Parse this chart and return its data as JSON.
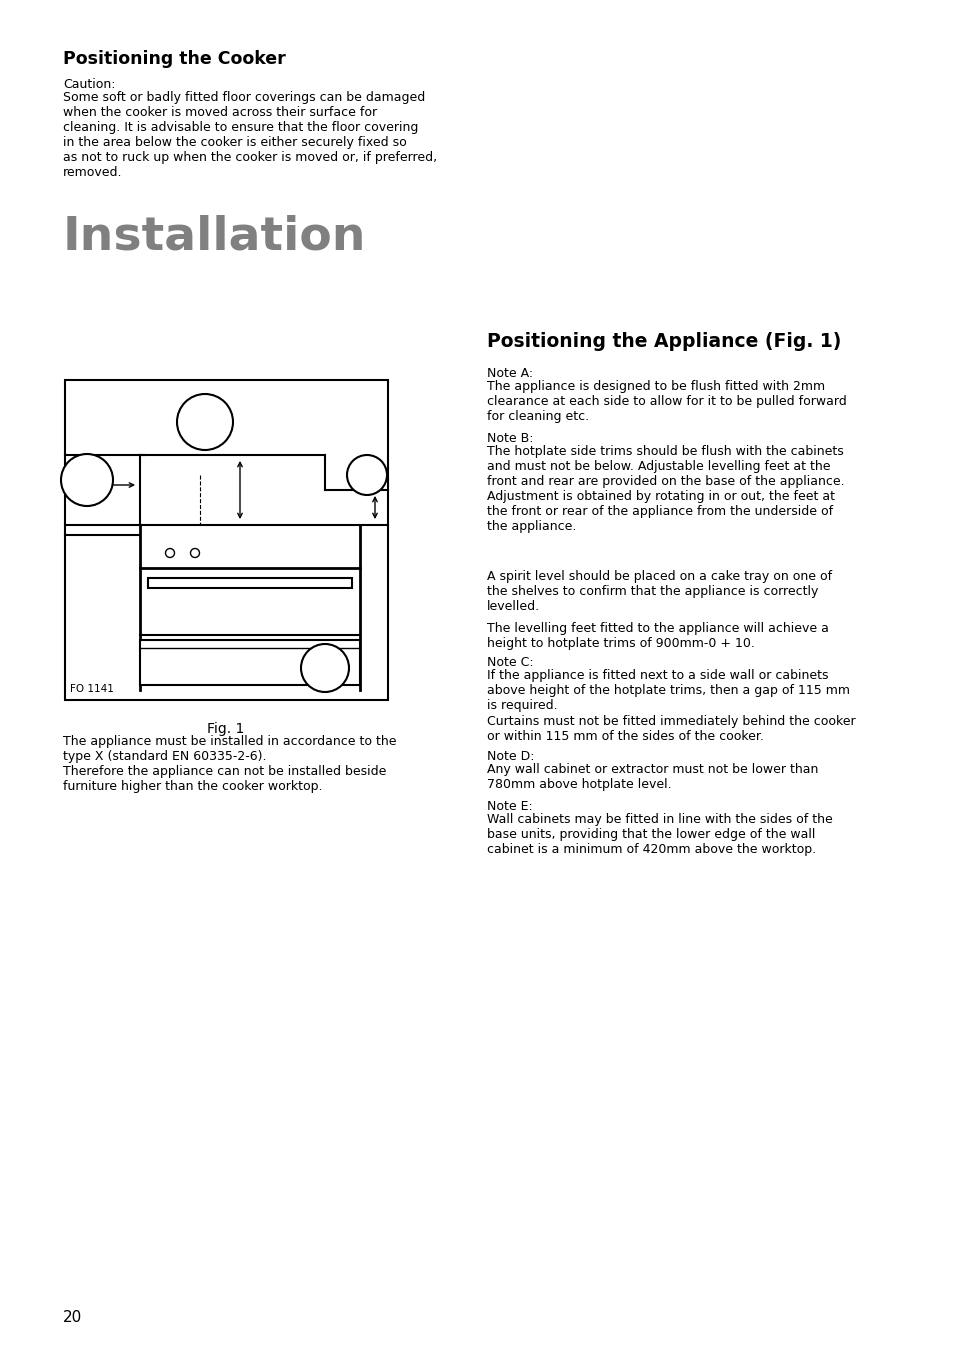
{
  "bg_color": "#ffffff",
  "page_number": "20",
  "section1_title": "Positioning the Cooker",
  "section1_caution_label": "Caution:",
  "section1_caution_text": "Some soft or badly fitted floor coverings can be damaged\nwhen the cooker is moved across their surface for\ncleaning. It is advisable to ensure that the floor covering\nin the area below the cooker is either securely fixed so\nas not to ruck up when the cooker is moved or, if preferred,\nremoved.",
  "installation_title": "Installation",
  "fig_label": "Fig. 1",
  "fig_note": "FO 1141",
  "left_para1": "The appliance must be installed in accordance to the\ntype X (standard EN 60335-2-6).\nTherefore the appliance can not be installed beside\nfurniture higher than the cooker worktop.",
  "section2_title": "Positioning the Appliance (Fig. 1)",
  "noteA_label": "Note A:",
  "noteA_text": "The appliance is designed to be flush fitted with 2mm\nclearance at each side to allow for it to be pulled forward\nfor cleaning etc.",
  "noteB_label": "Note B:",
  "noteB_text": "The hotplate side trims should be flush with the cabinets\nand must not be below. Adjustable levelling feet at the\nfront and rear are provided on the base of the appliance.\nAdjustment is obtained by rotating in or out, the feet at\nthe front or rear of the appliance from the underside of\nthe appliance.",
  "noteB_extra": "A spirit level should be placed on a cake tray on one of\nthe shelves to confirm that the appliance is correctly\nlevelled.",
  "levelling_text": "The levelling feet fitted to the appliance will achieve a\nheight to hotplate trims of 900mm-0 + 10.",
  "noteC_label": "Note C:",
  "noteC_text": "If the appliance is fitted next to a side wall or cabinets\nabove height of the hotplate trims, then a gap of 115 mm\nis required.",
  "curtains_text": "Curtains must not be fitted immediately behind the cooker\nor within 115 mm of the sides of the cooker.",
  "noteD_label": "Note D:",
  "noteD_text": "Any wall cabinet or extractor must not be lower than\n780mm above hotplate level.",
  "noteE_label": "Note E:",
  "noteE_text": "Wall cabinets may be fitted in line with the sides of the\nbase units, providing that the lower edge of the wall\ncabinet is a minimum of 420mm above the worktop."
}
